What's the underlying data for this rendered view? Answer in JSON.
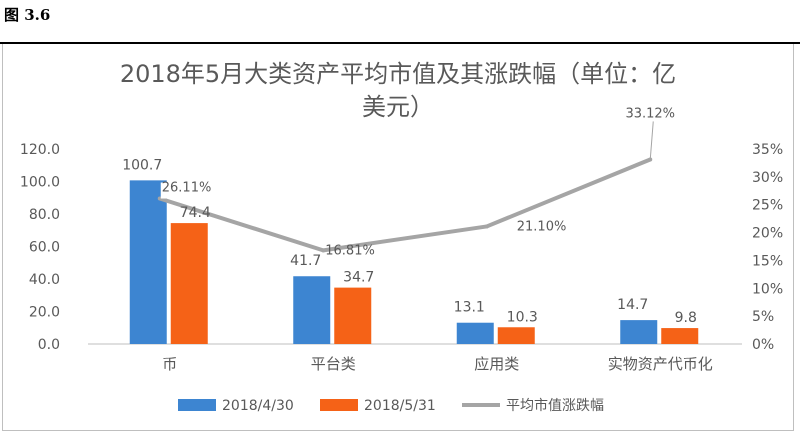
{
  "figure_label": "图 3.6",
  "chart_data": {
    "type": "bar",
    "title": "2018年5月大类资产平均市值及其涨跌幅（单位：亿美元）",
    "title_lines": [
      "2018年5月大类资产平均市值及其涨跌幅（单位：亿",
      "美元）"
    ],
    "categories": [
      "币",
      "平台类",
      "应用类",
      "实物资产代币化"
    ],
    "series": [
      {
        "name": "2018/4/30",
        "type": "bar",
        "axis": "left",
        "color": "#3d85d1",
        "values": [
          100.7,
          41.7,
          13.1,
          14.7
        ],
        "labels": [
          "100.7",
          "41.7",
          "13.1",
          "14.7"
        ]
      },
      {
        "name": "2018/5/31",
        "type": "bar",
        "axis": "left",
        "color": "#f56217",
        "values": [
          74.4,
          34.7,
          10.3,
          9.8
        ],
        "labels": [
          "74.4",
          "34.7",
          "10.3",
          "9.8"
        ]
      },
      {
        "name": "平均市值涨跌幅",
        "type": "line",
        "axis": "right",
        "color": "#a5a5a5",
        "values": [
          26.11,
          16.81,
          21.1,
          33.12
        ],
        "labels": [
          "26.11%",
          "16.81%",
          "21.10%",
          "33.12%"
        ]
      }
    ],
    "y_left": {
      "min": 0,
      "max": 120,
      "step": 20,
      "ticks": [
        "0.0",
        "20.0",
        "40.0",
        "60.0",
        "80.0",
        "100.0",
        "120.0"
      ]
    },
    "y_right": {
      "min": 0,
      "max": 35,
      "step": 5,
      "ticks": [
        "0%",
        "5%",
        "10%",
        "15%",
        "20%",
        "25%",
        "30%",
        "35%"
      ]
    },
    "grid": false,
    "legend_position": "bottom"
  }
}
